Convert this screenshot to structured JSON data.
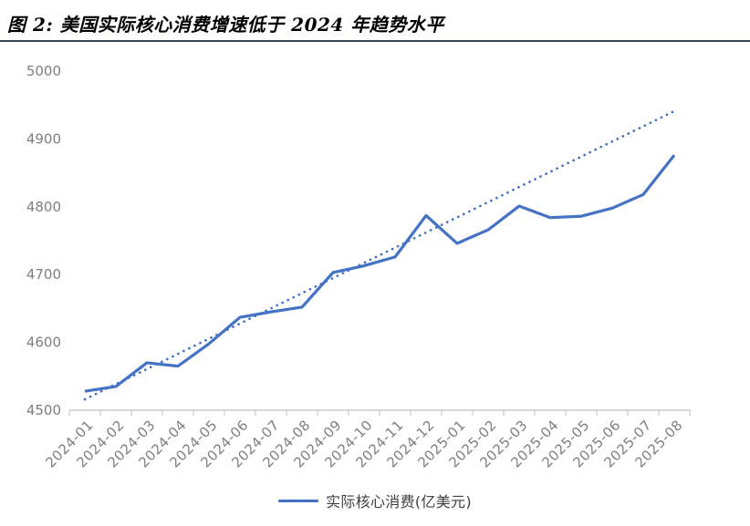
{
  "page": {
    "title": "图 2: 美国实际核心消费增速低于 2024 年趋势水平"
  },
  "colors": {
    "series_blue": "#4472C4",
    "trend_blue": "#4472C4",
    "axis_line": "#CBCBCB",
    "axis_text": "#7F7F7F",
    "title_text": "#000000",
    "legend_text": "#3F3F3F",
    "divider": "#36454F",
    "background": "#FFFFFF"
  },
  "chart_data": {
    "type": "line",
    "title": "图 2: 美国实际核心消费增速低于 2024 年趋势水平",
    "xlabel": "",
    "ylabel": "",
    "ylim": [
      4500,
      5000
    ],
    "yticks": [
      4500,
      4600,
      4700,
      4800,
      4900,
      5000
    ],
    "grid": false,
    "legend_position": "bottom",
    "x_label_rotation_deg": 45,
    "categories": [
      "2024-01",
      "2024-02",
      "2024-03",
      "2024-04",
      "2024-05",
      "2024-06",
      "2024-07",
      "2024-08",
      "2024-09",
      "2024-10",
      "2024-11",
      "2024-12",
      "2025-01",
      "2025-02",
      "2025-03",
      "2025-04",
      "2025-05",
      "2025-06",
      "2025-07",
      "2025-08"
    ],
    "series": [
      {
        "name": "实际核心消费(亿美元)",
        "line_style": "solid",
        "in_legend": true,
        "values": [
          4528,
          4535,
          4570,
          4565,
          4598,
          4637,
          4645,
          4652,
          4703,
          4713,
          4726,
          4787,
          4746,
          4766,
          4801,
          4784,
          4786,
          4798,
          4818,
          4876
        ]
      },
      {
        "name": "trend",
        "line_style": "dotted",
        "in_legend": false,
        "values": [
          4516.0,
          4538.4,
          4560.7,
          4583.1,
          4605.5,
          4627.8,
          4650.2,
          4672.6,
          4694.9,
          4717.3,
          4739.7,
          4762.1,
          4784.4,
          4806.8,
          4829.2,
          4851.5,
          4873.9,
          4896.3,
          4918.6,
          4941.0
        ]
      }
    ]
  }
}
